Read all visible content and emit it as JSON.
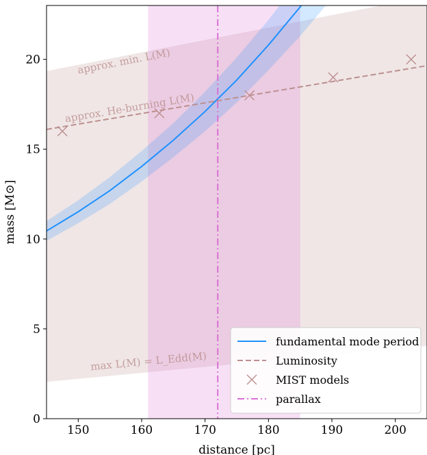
{
  "chart_data": {
    "type": "line",
    "xlabel": "distance [pc]",
    "ylabel": "mass [M⊙]",
    "xlim": [
      145,
      205
    ],
    "ylim": [
      0,
      23
    ],
    "xticks": [
      150,
      160,
      170,
      180,
      190,
      200
    ],
    "yticks": [
      0,
      5,
      10,
      15,
      20
    ],
    "grid": false,
    "legend_position": "bottom-right",
    "colors": {
      "fundamental": "#1e90ff",
      "luminosity": "#bc8f8f",
      "parallax": "#da70d6"
    },
    "series": [
      {
        "name": "fundamental mode period",
        "kind": "line",
        "x": [
          145,
          150,
          155,
          160,
          165,
          170,
          175,
          180,
          185,
          190
        ],
        "y": [
          10.45,
          11.52,
          12.7,
          14.04,
          15.5,
          17.1,
          18.85,
          20.8,
          22.92,
          25.2
        ],
        "band_lower": [
          9.9,
          10.88,
          11.96,
          13.2,
          14.55,
          16.0,
          17.6,
          19.4,
          21.3,
          23.4
        ],
        "band_upper": [
          11.0,
          12.16,
          13.45,
          14.9,
          16.45,
          18.2,
          20.1,
          22.2,
          24.5,
          27.0
        ]
      },
      {
        "name": "Luminosity",
        "kind": "dashed",
        "x": [
          145,
          205
        ],
        "y": [
          16.1,
          19.65
        ],
        "band_lower": [
          2.05,
          4.05
        ],
        "band_upper": [
          19.35,
          23.5
        ]
      },
      {
        "name": "MIST models",
        "kind": "markers",
        "x": [
          147.5,
          162.8,
          177.0,
          190.2,
          202.5
        ],
        "y": [
          16.0,
          17.0,
          18.0,
          19.0,
          20.0
        ]
      },
      {
        "name": "parallax",
        "kind": "vline",
        "x": 172,
        "band": [
          161,
          185
        ]
      }
    ],
    "annotations": [
      {
        "text": "approx. min. L(M)",
        "x": 150,
        "y": 19.2
      },
      {
        "text": "approx. He-burning L(M)",
        "x": 148,
        "y": 16.5
      },
      {
        "text": "max L(M) = L_Edd(M)",
        "x": 152,
        "y": 2.7
      }
    ]
  }
}
